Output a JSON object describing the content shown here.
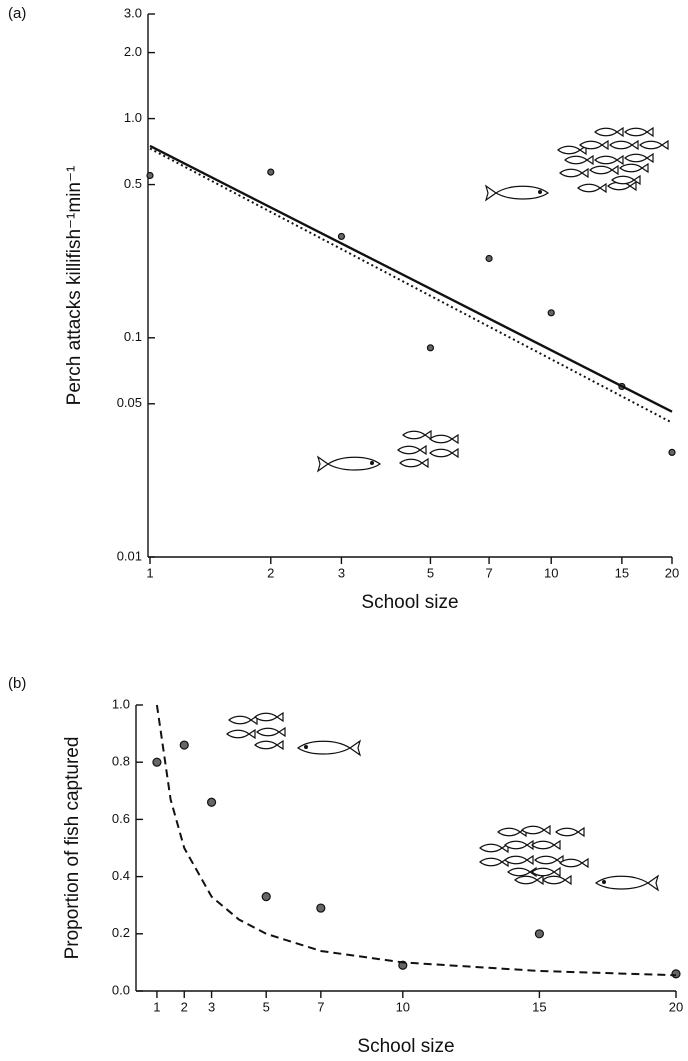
{
  "chart_data": [
    {
      "type": "scatter",
      "panel_label": "(a)",
      "x_label": "School size",
      "y_label": "Perch attacks killifish⁻¹min⁻¹",
      "xscale": "log",
      "yscale": "log",
      "xlim": [
        1,
        20
      ],
      "ylim": [
        0.01,
        3.0
      ],
      "xticks": [
        1,
        2,
        3,
        5,
        7,
        10,
        15,
        20
      ],
      "yticks": [
        0.01,
        0.05,
        0.1,
        0.5,
        {
          "value": 1,
          "label": "1.0"
        },
        {
          "value": 2,
          "label": "2.0"
        },
        {
          "value": 3,
          "label": "3.0"
        }
      ],
      "series": [
        {
          "kind": "points",
          "color": "#111",
          "x": [
            1,
            2,
            3,
            5,
            7,
            10,
            15,
            20
          ],
          "values": [
            0.55,
            0.57,
            0.29,
            0.09,
            0.23,
            0.13,
            0.06,
            0.03
          ]
        },
        {
          "kind": "line",
          "style": "solid",
          "color": "#111",
          "x": [
            1,
            20
          ],
          "values": [
            0.75,
            0.046
          ]
        },
        {
          "kind": "line",
          "style": "dotted",
          "color": "#111",
          "x": [
            1,
            20
          ],
          "values": [
            0.73,
            0.041
          ]
        }
      ]
    },
    {
      "type": "scatter",
      "panel_label": "(b)",
      "x_label": "School size",
      "y_label": "Proportion of fish captured",
      "xscale": "linear",
      "yscale": "linear",
      "xlim": [
        0.6,
        20
      ],
      "ylim": [
        0,
        1
      ],
      "xticks": [
        1,
        2,
        3,
        5,
        7,
        10,
        15,
        20
      ],
      "yticks": [
        {
          "value": 0,
          "label": "0.0"
        },
        0.2,
        0.4,
        0.6,
        0.8,
        {
          "value": 1,
          "label": "1.0"
        }
      ],
      "series": [
        {
          "kind": "points",
          "color": "#111",
          "x": [
            1,
            2,
            3,
            5,
            7,
            10,
            15,
            20
          ],
          "values": [
            0.8,
            0.86,
            0.66,
            0.33,
            0.29,
            0.09,
            0.2,
            0.06
          ]
        },
        {
          "kind": "line",
          "style": "dashed",
          "color": "#111",
          "x": [
            1,
            1.5,
            2,
            3,
            4,
            5,
            7,
            10,
            15,
            20
          ],
          "values": [
            1.0,
            0.67,
            0.5,
            0.33,
            0.25,
            0.2,
            0.14,
            0.1,
            0.07,
            0.055
          ]
        }
      ]
    }
  ]
}
